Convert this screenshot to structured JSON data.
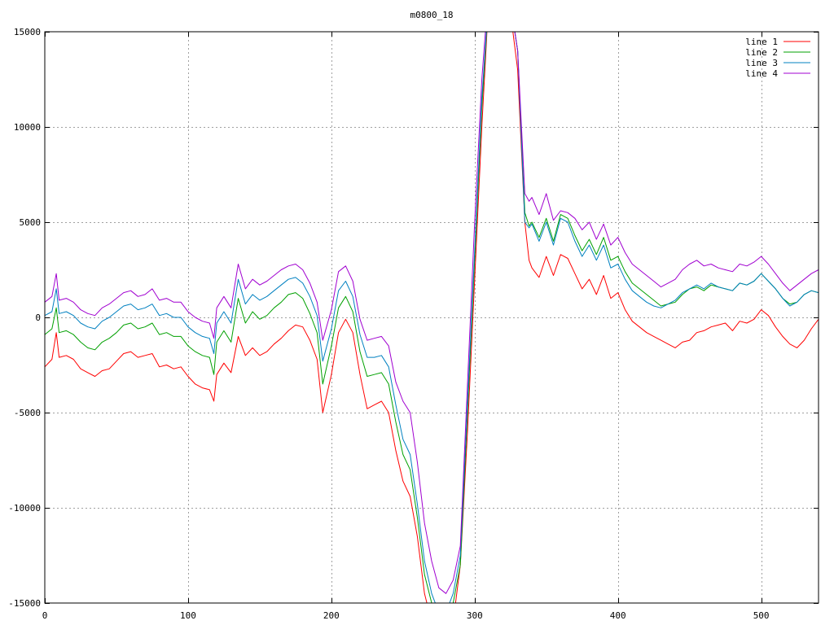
{
  "chart_data": {
    "type": "line",
    "title": "m0800_18",
    "xlabel": "",
    "ylabel": "",
    "xlim": [
      0,
      540
    ],
    "ylim": [
      -15000,
      15000
    ],
    "xticks": [
      0,
      100,
      200,
      300,
      400,
      500
    ],
    "yticks": [
      -15000,
      -10000,
      -5000,
      0,
      5000,
      10000,
      15000
    ],
    "grid": true,
    "legend_position": "top-right",
    "series": [
      {
        "name": "line 1",
        "color": "#ff0000",
        "x": [
          0,
          5,
          8,
          10,
          15,
          20,
          25,
          30,
          35,
          40,
          45,
          50,
          55,
          60,
          65,
          70,
          75,
          80,
          85,
          90,
          95,
          100,
          105,
          110,
          115,
          118,
          120,
          125,
          130,
          135,
          140,
          145,
          150,
          155,
          160,
          165,
          170,
          175,
          180,
          185,
          190,
          194,
          200,
          205,
          210,
          215,
          220,
          225,
          230,
          235,
          240,
          245,
          250,
          255,
          260,
          265,
          270,
          275,
          280,
          285,
          290,
          295,
          300,
          305,
          310,
          315,
          320,
          325,
          330,
          335,
          338,
          340,
          345,
          350,
          355,
          360,
          365,
          370,
          375,
          380,
          385,
          390,
          395,
          400,
          405,
          410,
          415,
          420,
          425,
          430,
          435,
          440,
          445,
          450,
          455,
          460,
          465,
          470,
          475,
          480,
          485,
          490,
          495,
          500,
          505,
          510,
          515,
          520,
          525,
          530,
          535,
          540
        ],
        "y": [
          -2600,
          -2200,
          -800,
          -2100,
          -2000,
          -2200,
          -2700,
          -2900,
          -3100,
          -2800,
          -2700,
          -2300,
          -1900,
          -1800,
          -2100,
          -2000,
          -1900,
          -2600,
          -2500,
          -2700,
          -2600,
          -3100,
          -3500,
          -3700,
          -3800,
          -4400,
          -3000,
          -2400,
          -2900,
          -1000,
          -2000,
          -1600,
          -2000,
          -1800,
          -1400,
          -1100,
          -700,
          -400,
          -500,
          -1200,
          -2200,
          -5000,
          -3000,
          -800,
          -100,
          -800,
          -3000,
          -4800,
          -4600,
          -4400,
          -5000,
          -7000,
          -8600,
          -9400,
          -11500,
          -14500,
          -16000,
          -17000,
          -17000,
          -16000,
          -13000,
          -6000,
          2000,
          10000,
          17000,
          18000,
          17000,
          16000,
          13000,
          5000,
          3000,
          2600,
          2100,
          3200,
          2200,
          3300,
          3100,
          2300,
          1500,
          2000,
          1200,
          2200,
          1000,
          1300,
          400,
          -200,
          -500,
          -800,
          -1000,
          -1200,
          -1400,
          -1600,
          -1300,
          -1200,
          -800,
          -700,
          -500,
          -400,
          -300,
          -700,
          -200,
          -300,
          -100,
          400,
          100,
          -500,
          -1000,
          -1400,
          -1600,
          -1200,
          -600,
          -100
        ]
      },
      {
        "name": "line 2",
        "color": "#00a000",
        "x": [
          0,
          5,
          8,
          10,
          15,
          20,
          25,
          30,
          35,
          40,
          45,
          50,
          55,
          60,
          65,
          70,
          75,
          80,
          85,
          90,
          95,
          100,
          105,
          110,
          115,
          118,
          120,
          125,
          130,
          135,
          140,
          145,
          150,
          155,
          160,
          165,
          170,
          175,
          180,
          185,
          190,
          194,
          200,
          205,
          210,
          215,
          220,
          225,
          230,
          235,
          240,
          245,
          250,
          255,
          260,
          265,
          270,
          275,
          280,
          285,
          290,
          295,
          300,
          305,
          310,
          315,
          320,
          325,
          330,
          335,
          338,
          340,
          345,
          350,
          355,
          360,
          365,
          370,
          375,
          380,
          385,
          390,
          395,
          400,
          405,
          410,
          415,
          420,
          425,
          430,
          435,
          440,
          445,
          450,
          455,
          460,
          465,
          470,
          475,
          480,
          485,
          490,
          495,
          500,
          505,
          510,
          515,
          520,
          525,
          530,
          535,
          540
        ],
        "y": [
          -900,
          -600,
          500,
          -800,
          -700,
          -900,
          -1300,
          -1600,
          -1700,
          -1300,
          -1100,
          -800,
          -400,
          -300,
          -600,
          -500,
          -300,
          -900,
          -800,
          -1000,
          -1000,
          -1500,
          -1800,
          -2000,
          -2100,
          -3000,
          -1300,
          -700,
          -1300,
          1000,
          -300,
          300,
          -100,
          100,
          500,
          800,
          1200,
          1300,
          1000,
          200,
          -800,
          -3500,
          -1500,
          500,
          1100,
          300,
          -1800,
          -3100,
          -3000,
          -2900,
          -3500,
          -5500,
          -7200,
          -8000,
          -10500,
          -13500,
          -15000,
          -16000,
          -16000,
          -15000,
          -13000,
          -5000,
          3000,
          11000,
          17000,
          18000,
          17500,
          16500,
          14000,
          5500,
          4800,
          5000,
          4200,
          5200,
          4000,
          5400,
          5200,
          4300,
          3500,
          4100,
          3300,
          4200,
          3000,
          3200,
          2400,
          1800,
          1500,
          1200,
          900,
          600,
          700,
          800,
          1200,
          1500,
          1600,
          1400,
          1700,
          1600,
          1500,
          1400,
          1800,
          1700,
          1900,
          2300,
          1900,
          1500,
          1000,
          700,
          800,
          1200,
          1400,
          1300
        ]
      },
      {
        "name": "line 3",
        "color": "#0080c0",
        "x": [
          0,
          5,
          8,
          10,
          15,
          20,
          25,
          30,
          35,
          40,
          45,
          50,
          55,
          60,
          65,
          70,
          75,
          80,
          85,
          90,
          95,
          100,
          105,
          110,
          115,
          118,
          120,
          125,
          130,
          135,
          140,
          145,
          150,
          155,
          160,
          165,
          170,
          175,
          180,
          185,
          190,
          194,
          200,
          205,
          210,
          215,
          220,
          225,
          230,
          235,
          240,
          245,
          250,
          255,
          260,
          265,
          270,
          275,
          280,
          285,
          290,
          295,
          300,
          305,
          310,
          315,
          320,
          325,
          330,
          335,
          338,
          340,
          345,
          350,
          355,
          360,
          365,
          370,
          375,
          380,
          385,
          390,
          395,
          400,
          405,
          410,
          415,
          420,
          425,
          430,
          435,
          440,
          445,
          450,
          455,
          460,
          465,
          470,
          475,
          480,
          485,
          490,
          495,
          500,
          505,
          510,
          515,
          520,
          525,
          530,
          535,
          540
        ],
        "y": [
          100,
          300,
          1500,
          200,
          300,
          100,
          -300,
          -500,
          -600,
          -200,
          0,
          300,
          600,
          700,
          400,
          500,
          700,
          100,
          200,
          0,
          0,
          -500,
          -800,
          -1000,
          -1100,
          -1900,
          -300,
          300,
          -300,
          2000,
          700,
          1200,
          900,
          1100,
          1400,
          1700,
          2000,
          2100,
          1800,
          1100,
          100,
          -2300,
          -600,
          1400,
          1900,
          1100,
          -900,
          -2100,
          -2100,
          -2000,
          -2600,
          -4600,
          -6400,
          -7200,
          -9800,
          -12800,
          -14500,
          -15500,
          -15500,
          -14500,
          -12500,
          -4500,
          3500,
          11500,
          17000,
          18000,
          17500,
          16500,
          14000,
          5000,
          4700,
          4900,
          4000,
          5000,
          3800,
          5200,
          5000,
          4000,
          3200,
          3800,
          3000,
          3800,
          2600,
          2800,
          2000,
          1400,
          1100,
          800,
          600,
          500,
          700,
          900,
          1300,
          1500,
          1700,
          1500,
          1800,
          1600,
          1500,
          1400,
          1800,
          1700,
          1900,
          2300,
          1900,
          1500,
          1000,
          600,
          800,
          1200,
          1400,
          1300
        ]
      },
      {
        "name": "line 4",
        "color": "#a000d0",
        "x": [
          0,
          5,
          8,
          10,
          15,
          20,
          25,
          30,
          35,
          40,
          45,
          50,
          55,
          60,
          65,
          70,
          75,
          80,
          85,
          90,
          95,
          100,
          105,
          110,
          115,
          118,
          120,
          125,
          130,
          135,
          140,
          145,
          150,
          155,
          160,
          165,
          170,
          175,
          180,
          185,
          190,
          194,
          200,
          205,
          210,
          215,
          220,
          225,
          230,
          235,
          240,
          245,
          250,
          255,
          260,
          265,
          270,
          275,
          280,
          285,
          290,
          295,
          300,
          305,
          310,
          315,
          320,
          325,
          330,
          335,
          338,
          340,
          345,
          350,
          355,
          360,
          365,
          370,
          375,
          380,
          385,
          390,
          395,
          400,
          405,
          410,
          415,
          420,
          425,
          430,
          435,
          440,
          445,
          450,
          455,
          460,
          465,
          470,
          475,
          480,
          485,
          490,
          495,
          500,
          505,
          510,
          515,
          520,
          525,
          530,
          535,
          540
        ],
        "y": [
          800,
          1100,
          2300,
          900,
          1000,
          800,
          400,
          200,
          100,
          500,
          700,
          1000,
          1300,
          1400,
          1100,
          1200,
          1500,
          900,
          1000,
          800,
          800,
          300,
          0,
          -200,
          -300,
          -1100,
          500,
          1100,
          500,
          2800,
          1500,
          2000,
          1700,
          1900,
          2200,
          2500,
          2700,
          2800,
          2500,
          1800,
          800,
          -1200,
          400,
          2400,
          2700,
          1900,
          -100,
          -1200,
          -1100,
          -1000,
          -1500,
          -3400,
          -4400,
          -5000,
          -7600,
          -10800,
          -12800,
          -14200,
          -14500,
          -13800,
          -12000,
          -3500,
          5000,
          12500,
          17500,
          18000,
          17500,
          16500,
          14000,
          6500,
          6100,
          6300,
          5400,
          6500,
          5100,
          5600,
          5500,
          5200,
          4600,
          5000,
          4100,
          4900,
          3800,
          4200,
          3400,
          2800,
          2500,
          2200,
          1900,
          1600,
          1800,
          2000,
          2500,
          2800,
          3000,
          2700,
          2800,
          2600,
          2500,
          2400,
          2800,
          2700,
          2900,
          3200,
          2800,
          2300,
          1800,
          1400,
          1700,
          2000,
          2300,
          2500
        ]
      }
    ]
  }
}
